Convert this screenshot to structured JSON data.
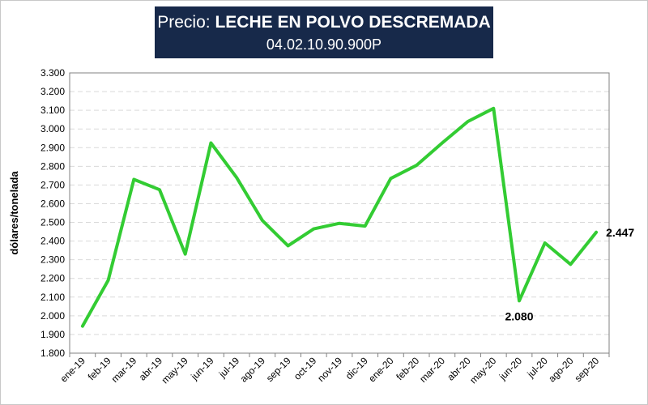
{
  "title": {
    "prefix": "Precio: ",
    "main": "LECHE EN POLVO DESCREMADA",
    "code": "04.02.10.90.900P"
  },
  "colors": {
    "title_background": "#17294a",
    "series_line": "#33cc33",
    "gridline": "#d9d9d9",
    "axis": "#808080"
  },
  "chart_data": {
    "type": "line",
    "ylabel": "dólares/tonelada",
    "xlabel": "",
    "ylim": [
      1800,
      3300
    ],
    "yticks": [
      1800,
      1900,
      2000,
      2100,
      2200,
      2300,
      2400,
      2500,
      2600,
      2700,
      2800,
      2900,
      3000,
      3100,
      3200,
      3300
    ],
    "ytick_labels": [
      "1.800",
      "1.900",
      "2.000",
      "2.100",
      "2.200",
      "2.300",
      "2.400",
      "2.500",
      "2.600",
      "2.700",
      "2.800",
      "2.900",
      "3.000",
      "3.100",
      "3.200",
      "3.300"
    ],
    "grid": true,
    "legend": "none",
    "categories": [
      "ene-19",
      "feb-19",
      "mar-19",
      "abr-19",
      "may-19",
      "jun-19",
      "jul-19",
      "ago-19",
      "sep-19",
      "oct-19",
      "nov-19",
      "dic-19",
      "ene-20",
      "feb-20",
      "mar-20",
      "abr-20",
      "may-20",
      "jun-20",
      "jul-20",
      "ago-20",
      "sep-20"
    ],
    "series": [
      {
        "values": [
          1945,
          2190,
          2730,
          2675,
          2330,
          2925,
          2740,
          2510,
          2375,
          2465,
          2495,
          2480,
          2735,
          2805,
          2925,
          3040,
          3110,
          2080,
          2390,
          2275,
          2447
        ]
      }
    ],
    "annotations": [
      {
        "index": 17,
        "text": "2.080",
        "position": "below"
      },
      {
        "index": 20,
        "text": "2.447",
        "position": "right"
      }
    ]
  }
}
